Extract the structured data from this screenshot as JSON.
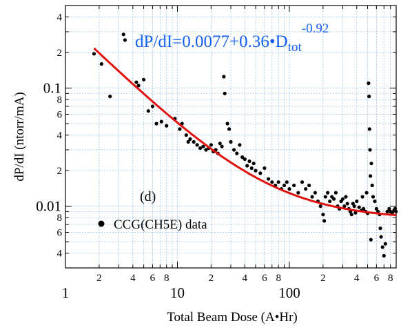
{
  "chart_data": {
    "type": "scatter",
    "title": "",
    "xlabel": "Total Beam Dose (A•Hr)",
    "ylabel": "dP/dI (ntorr/mA)",
    "x_scale": "log",
    "y_scale": "log",
    "xlim": [
      1,
      900
    ],
    "ylim": [
      0.003,
      0.5
    ],
    "grid": true,
    "legend_position": "bottom-left",
    "panel_label": "(d)",
    "fit_equation": {
      "main": "dP/dI=0.0077+0.36•D",
      "subscript": "tot",
      "superscript": "-0.92"
    },
    "x_ticks": {
      "major": [
        {
          "value": 1,
          "label": "1"
        },
        {
          "value": 10,
          "label": "10"
        },
        {
          "value": 100,
          "label": "100"
        }
      ],
      "minor": [
        {
          "value": 2,
          "label": "2"
        },
        {
          "value": 4,
          "label": "4"
        },
        {
          "value": 6,
          "label": "6"
        },
        {
          "value": 8,
          "label": "8"
        },
        {
          "value": 20,
          "label": "2"
        },
        {
          "value": 40,
          "label": "4"
        },
        {
          "value": 60,
          "label": "6"
        },
        {
          "value": 80,
          "label": "8"
        },
        {
          "value": 200,
          "label": "2"
        },
        {
          "value": 400,
          "label": "4"
        },
        {
          "value": 600,
          "label": "6"
        },
        {
          "value": 800,
          "label": "8"
        }
      ]
    },
    "y_ticks": {
      "major": [
        {
          "value": 0.01,
          "label": "0.01"
        },
        {
          "value": 0.1,
          "label": "0.1"
        }
      ],
      "minor": [
        {
          "value": 0.004,
          "label": "4"
        },
        {
          "value": 0.006,
          "label": "6"
        },
        {
          "value": 0.008,
          "label": "8"
        },
        {
          "value": 0.02,
          "label": "2"
        },
        {
          "value": 0.04,
          "label": "4"
        },
        {
          "value": 0.06,
          "label": "6"
        },
        {
          "value": 0.08,
          "label": "8"
        },
        {
          "value": 0.2,
          "label": "2"
        },
        {
          "value": 0.4,
          "label": "4"
        }
      ]
    },
    "series": [
      {
        "name": "CCG(CH5E) data",
        "kind": "scatter",
        "color": "#000000",
        "points": [
          [
            1.8,
            0.195
          ],
          [
            2.1,
            0.16
          ],
          [
            2.5,
            0.085
          ],
          [
            3.3,
            0.285
          ],
          [
            3.4,
            0.255
          ],
          [
            4.3,
            0.112
          ],
          [
            4.5,
            0.105
          ],
          [
            5.0,
            0.118
          ],
          [
            5.5,
            0.064
          ],
          [
            6.0,
            0.07
          ],
          [
            6.5,
            0.05
          ],
          [
            7.2,
            0.052
          ],
          [
            8.0,
            0.048
          ],
          [
            9.5,
            0.055
          ],
          [
            10.5,
            0.045
          ],
          [
            11.0,
            0.05
          ],
          [
            12.0,
            0.04
          ],
          [
            12.5,
            0.035
          ],
          [
            13.0,
            0.037
          ],
          [
            14.0,
            0.035
          ],
          [
            15.0,
            0.033
          ],
          [
            16.0,
            0.031
          ],
          [
            17.0,
            0.032
          ],
          [
            18.0,
            0.03
          ],
          [
            19.0,
            0.031
          ],
          [
            20.0,
            0.033
          ],
          [
            21.0,
            0.029
          ],
          [
            22.0,
            0.03
          ],
          [
            23.0,
            0.028
          ],
          [
            24.0,
            0.034
          ],
          [
            25.0,
            0.032
          ],
          [
            26.0,
            0.125
          ],
          [
            26.5,
            0.09
          ],
          [
            28.0,
            0.05
          ],
          [
            29.0,
            0.045
          ],
          [
            30.0,
            0.035
          ],
          [
            32.0,
            0.03
          ],
          [
            34.0,
            0.028
          ],
          [
            36.0,
            0.033
          ],
          [
            38.0,
            0.026
          ],
          [
            40.0,
            0.025
          ],
          [
            42.0,
            0.022
          ],
          [
            44.0,
            0.024
          ],
          [
            46.0,
            0.021
          ],
          [
            48.0,
            0.023
          ],
          [
            50.0,
            0.02
          ],
          [
            55.0,
            0.019
          ],
          [
            60.0,
            0.021
          ],
          [
            65.0,
            0.017
          ],
          [
            70.0,
            0.016
          ],
          [
            75.0,
            0.015
          ],
          [
            80.0,
            0.016
          ],
          [
            85.0,
            0.014
          ],
          [
            90.0,
            0.015
          ],
          [
            95.0,
            0.016
          ],
          [
            100.0,
            0.014
          ],
          [
            110.0,
            0.015
          ],
          [
            120.0,
            0.013
          ],
          [
            130.0,
            0.016
          ],
          [
            140.0,
            0.014
          ],
          [
            150.0,
            0.015
          ],
          [
            160.0,
            0.012
          ],
          [
            170.0,
            0.013
          ],
          [
            180.0,
            0.011
          ],
          [
            190.0,
            0.01
          ],
          [
            200.0,
            0.0085
          ],
          [
            205.0,
            0.0075
          ],
          [
            210.0,
            0.012
          ],
          [
            220.0,
            0.013
          ],
          [
            230.0,
            0.011
          ],
          [
            240.0,
            0.012
          ],
          [
            250.0,
            0.0115
          ],
          [
            260.0,
            0.013
          ],
          [
            270.0,
            0.01
          ],
          [
            280.0,
            0.0095
          ],
          [
            290.0,
            0.011
          ],
          [
            300.0,
            0.0115
          ],
          [
            310.0,
            0.01
          ],
          [
            320.0,
            0.012
          ],
          [
            330.0,
            0.0105
          ],
          [
            340.0,
            0.0095
          ],
          [
            350.0,
            0.009
          ],
          [
            360.0,
            0.0085
          ],
          [
            370.0,
            0.0105
          ],
          [
            380.0,
            0.01
          ],
          [
            390.0,
            0.0088
          ],
          [
            400.0,
            0.011
          ],
          [
            420.0,
            0.0098
          ],
          [
            440.0,
            0.0092
          ],
          [
            450.0,
            0.012
          ],
          [
            460.0,
            0.0095
          ],
          [
            480.0,
            0.009
          ],
          [
            490.0,
            0.013
          ],
          [
            500.0,
            0.0087
          ],
          [
            510.0,
            0.11
          ],
          [
            515.0,
            0.085
          ],
          [
            520.0,
            0.045
          ],
          [
            525.0,
            0.03
          ],
          [
            530.0,
            0.018
          ],
          [
            535.0,
            0.0052
          ],
          [
            540.0,
            0.023
          ],
          [
            550.0,
            0.015
          ],
          [
            560.0,
            0.012
          ],
          [
            580.0,
            0.011
          ],
          [
            600.0,
            0.0095
          ],
          [
            620.0,
            0.009
          ],
          [
            640.0,
            0.0085
          ],
          [
            650.0,
            0.0065
          ],
          [
            660.0,
            0.0055
          ],
          [
            680.0,
            0.0045
          ],
          [
            700.0,
            0.0038
          ],
          [
            720.0,
            0.0048
          ],
          [
            750.0,
            0.009
          ],
          [
            780.0,
            0.0095
          ],
          [
            800.0,
            0.009
          ],
          [
            830.0,
            0.0088
          ],
          [
            860.0,
            0.0092
          ],
          [
            880.0,
            0.0095
          ],
          [
            895.0,
            0.009
          ]
        ]
      },
      {
        "kind": "line",
        "color": "#e0120f",
        "function": "0.0077+0.36*x^-0.92",
        "x_range": [
          1.8,
          900
        ]
      }
    ]
  }
}
